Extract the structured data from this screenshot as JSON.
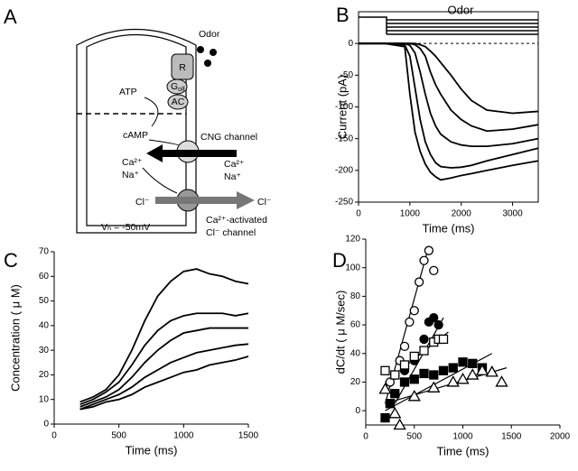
{
  "diagram": {
    "panel_label": "A",
    "odor": "Odor",
    "receptor": "R",
    "g_protein": "G",
    "g_protein_sub": "olf",
    "atp": "ATP",
    "ac": "AC",
    "camp": "cAMP",
    "cng": "CNG channel",
    "ca_in": "Ca²⁺",
    "na_in": "Na⁺",
    "ca_out": "Ca²⁺",
    "na_out": "Na⁺",
    "cl_in": "Cl⁻",
    "cl_out": "Cl⁻",
    "cacl_1": "Ca²⁺-activated",
    "cacl_2": "Cl⁻ channel",
    "vh": "Vₕ = -50mV"
  },
  "chart_data": [
    {
      "type": "line",
      "panel_label": "B",
      "annotation": "Odor",
      "xlabel": "Time (ms)",
      "ylabel": "Current (pA)",
      "color": "#000000",
      "reference_line": 0,
      "x": [
        0,
        500,
        900,
        1000,
        1100,
        1200,
        1300,
        1400,
        1500,
        1600,
        1800,
        2000,
        2200,
        2500,
        3000,
        3500
      ],
      "series": [
        {
          "values": [
            0,
            0,
            -5,
            -80,
            -140,
            -170,
            -190,
            -203,
            -210,
            -215,
            -212,
            -208,
            -205,
            -200,
            -192,
            -185
          ]
        },
        {
          "values": [
            0,
            0,
            -2,
            -20,
            -70,
            -120,
            -155,
            -175,
            -188,
            -194,
            -196,
            -195,
            -192,
            -185,
            -175,
            -165
          ]
        },
        {
          "values": [
            0,
            0,
            0,
            -3,
            -15,
            -45,
            -80,
            -110,
            -130,
            -143,
            -155,
            -160,
            -162,
            -162,
            -158,
            -150
          ]
        },
        {
          "values": [
            0,
            0,
            0,
            0,
            -2,
            -8,
            -20,
            -45,
            -65,
            -80,
            -105,
            -120,
            -130,
            -138,
            -135,
            -128
          ]
        },
        {
          "values": [
            0,
            0,
            0,
            0,
            0,
            -2,
            -5,
            -12,
            -20,
            -30,
            -50,
            -72,
            -90,
            -105,
            -110,
            -107
          ]
        }
      ],
      "xlim": [
        0,
        3500
      ],
      "xticks": [
        0,
        1000,
        2000,
        3000
      ],
      "ylim": [
        -250,
        50
      ],
      "yticks": [
        0,
        -50,
        -100,
        -150,
        -200,
        -250
      ]
    },
    {
      "type": "line",
      "panel_label": "C",
      "xlabel": "Time (ms)",
      "ylabel": "Concentration ( μ M)",
      "color": "#000000",
      "x": [
        200,
        300,
        400,
        500,
        600,
        700,
        800,
        900,
        1000,
        1100,
        1200,
        1300,
        1400,
        1500
      ],
      "series": [
        {
          "values": [
            9,
            11,
            14,
            20,
            30,
            42,
            52,
            58,
            62,
            63,
            61,
            60,
            58,
            57
          ]
        },
        {
          "values": [
            8,
            10,
            13,
            17,
            24,
            32,
            38,
            42,
            44,
            45,
            45,
            45,
            44,
            45
          ]
        },
        {
          "values": [
            7,
            9,
            11,
            14,
            19,
            25,
            30,
            34,
            37,
            38,
            39,
            39,
            39,
            39
          ]
        },
        {
          "values": [
            6,
            8,
            10,
            12,
            15,
            19,
            22,
            25,
            27,
            29,
            30,
            31,
            32,
            32.5
          ]
        },
        {
          "values": [
            6,
            7,
            9,
            10,
            12,
            15,
            17,
            19,
            21,
            22,
            24,
            25,
            26,
            27.5
          ]
        }
      ],
      "xlim": [
        0,
        1500
      ],
      "xticks": [
        0,
        500,
        1000,
        1500
      ],
      "ylim": [
        0,
        70
      ],
      "yticks": [
        0,
        10,
        20,
        30,
        40,
        50,
        60,
        70
      ]
    },
    {
      "type": "scatter",
      "panel_label": "D",
      "xlabel": "Time (ms)",
      "ylabel": "dC/dt ( μ M/sec)",
      "color": "#000000",
      "series": [
        {
          "marker": "open-circle",
          "x": [
            250,
            300,
            350,
            400,
            450,
            500,
            550,
            600,
            650,
            700
          ],
          "values": [
            20,
            25,
            35,
            45,
            62,
            70,
            90,
            105,
            112,
            98
          ]
        },
        {
          "marker": "filled-circle",
          "x": [
            300,
            400,
            500,
            600,
            650,
            700,
            750
          ],
          "values": [
            12,
            28,
            35,
            50,
            62,
            65,
            60
          ]
        },
        {
          "marker": "open-square",
          "x": [
            200,
            300,
            400,
            500,
            600,
            700,
            750,
            800
          ],
          "values": [
            28,
            25,
            32,
            38,
            42,
            48,
            50,
            50
          ]
        },
        {
          "marker": "filled-square",
          "x": [
            200,
            250,
            300,
            400,
            500,
            600,
            700,
            800,
            900,
            1000,
            1100,
            1200
          ],
          "values": [
            -5,
            5,
            12,
            20,
            22,
            26,
            25,
            28,
            30,
            34,
            33,
            30
          ]
        },
        {
          "marker": "open-triangle",
          "x": [
            200,
            300,
            350,
            500,
            700,
            900,
            1000,
            1100,
            1200,
            1300,
            1400
          ],
          "values": [
            15,
            -2,
            -10,
            10,
            16,
            20,
            22,
            25,
            28,
            27,
            20
          ]
        }
      ],
      "fits": [
        {
          "x": [
            200,
            650
          ],
          "y": [
            5,
            115
          ]
        },
        {
          "x": [
            300,
            800
          ],
          "y": [
            5,
            65
          ]
        },
        {
          "x": [
            200,
            850
          ],
          "y": [
            20,
            55
          ]
        },
        {
          "x": [
            200,
            1300
          ],
          "y": [
            0,
            40
          ]
        },
        {
          "x": [
            200,
            1450
          ],
          "y": [
            5,
            30
          ]
        }
      ],
      "xlim": [
        0,
        2000
      ],
      "xticks": [
        0,
        500,
        1000,
        1500,
        2000
      ],
      "ylim": [
        -10,
        120
      ],
      "yticks": [
        0,
        20,
        40,
        60,
        80,
        100,
        120
      ]
    }
  ]
}
